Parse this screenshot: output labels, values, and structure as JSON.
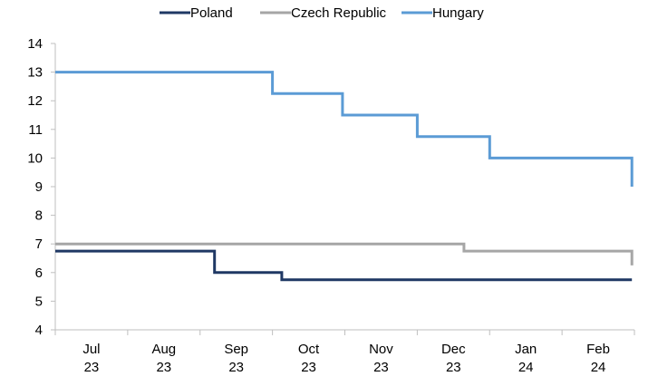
{
  "chart_data": {
    "type": "line",
    "step": true,
    "title": "",
    "xlabel": "",
    "ylabel": "",
    "ylim": [
      4,
      14
    ],
    "yticks": [
      "4",
      "5",
      "6",
      "7",
      "8",
      "9",
      "10",
      "11",
      "12",
      "13",
      "14"
    ],
    "categories": [
      {
        "month": "Jul",
        "year": "23"
      },
      {
        "month": "Aug",
        "year": "23"
      },
      {
        "month": "Sep",
        "year": "23"
      },
      {
        "month": "Oct",
        "year": "23"
      },
      {
        "month": "Nov",
        "year": "23"
      },
      {
        "month": "Dec",
        "year": "23"
      },
      {
        "month": "Jan",
        "year": "24"
      },
      {
        "month": "Feb",
        "year": "24"
      }
    ],
    "legend_position": "top",
    "grid": false,
    "series": [
      {
        "name": "Poland",
        "color": "#1f3864",
        "points": [
          {
            "x": "2023-07-01",
            "y": 6.75
          },
          {
            "x": "2023-09-07",
            "y": 6.0
          },
          {
            "x": "2023-10-05",
            "y": 5.75
          },
          {
            "x": "2024-02-29",
            "y": 5.75
          }
        ]
      },
      {
        "name": "Czech Republic",
        "color": "#a6a6a6",
        "points": [
          {
            "x": "2023-07-01",
            "y": 7.0
          },
          {
            "x": "2023-12-21",
            "y": 6.75
          },
          {
            "x": "2024-02-29",
            "y": 6.25
          }
        ]
      },
      {
        "name": "Hungary",
        "color": "#5b9bd5",
        "points": [
          {
            "x": "2023-07-01",
            "y": 13.0
          },
          {
            "x": "2023-10-01",
            "y": 12.25
          },
          {
            "x": "2023-10-31",
            "y": 11.5
          },
          {
            "x": "2023-12-01",
            "y": 10.75
          },
          {
            "x": "2024-01-01",
            "y": 10.0
          },
          {
            "x": "2024-02-29",
            "y": 9.0
          }
        ]
      }
    ]
  }
}
